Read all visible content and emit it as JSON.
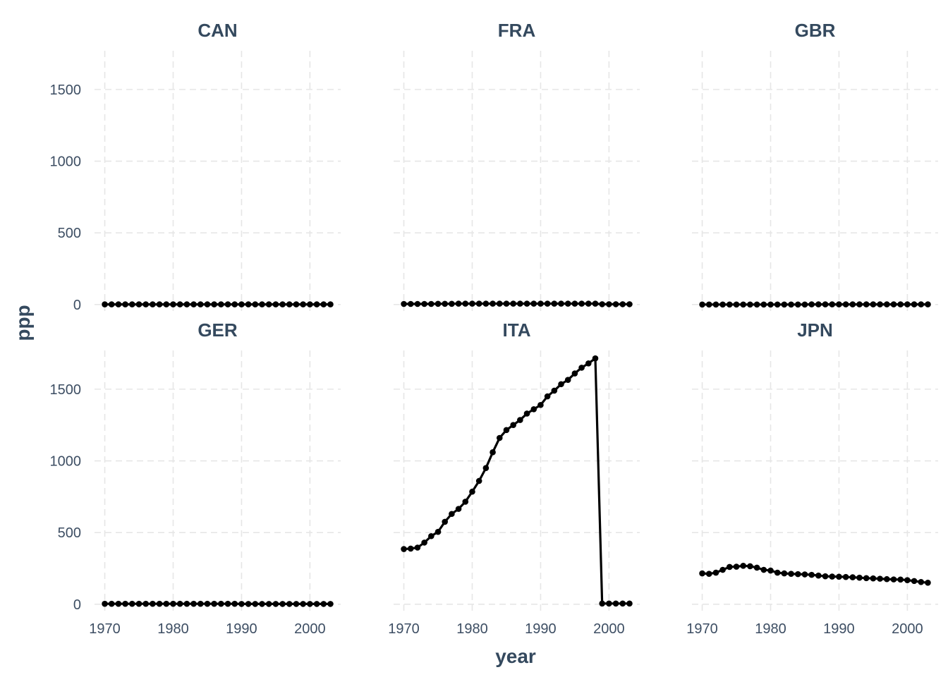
{
  "chart_data": {
    "type": "line",
    "facet_layout": "3 columns x 2 rows",
    "xlabel": "year",
    "ylabel": "ppp",
    "xlim": [
      1968.5,
      2004.5
    ],
    "ylim": [
      -60,
      1770
    ],
    "x_ticks": [
      1970,
      1980,
      1990,
      2000
    ],
    "y_ticks": [
      0,
      500,
      1000,
      1500
    ],
    "grid": true,
    "line_color": "#000000",
    "x": [
      1970,
      1971,
      1972,
      1973,
      1974,
      1975,
      1976,
      1977,
      1978,
      1979,
      1980,
      1981,
      1982,
      1983,
      1984,
      1985,
      1986,
      1987,
      1988,
      1989,
      1990,
      1991,
      1992,
      1993,
      1994,
      1995,
      1996,
      1997,
      1998,
      1999,
      2000,
      2001,
      2002,
      2003
    ],
    "panels": [
      {
        "title": "CAN",
        "values": [
          1,
          1,
          1,
          1,
          1,
          1,
          1,
          1,
          1,
          1,
          1,
          1,
          1,
          1,
          1,
          1,
          1,
          1,
          1,
          1,
          1,
          1,
          1,
          1,
          1,
          1,
          1,
          1,
          1,
          1,
          1,
          1,
          1,
          1
        ]
      },
      {
        "title": "FRA",
        "values": [
          4,
          4,
          4,
          4,
          4,
          5,
          5,
          5,
          6,
          6,
          6,
          6,
          6,
          6,
          6,
          6,
          6,
          6,
          6,
          6,
          6,
          6,
          6,
          6,
          6,
          6,
          6,
          6,
          6,
          2,
          2,
          2,
          2,
          2
        ]
      },
      {
        "title": "GBR",
        "values": [
          0,
          0,
          0,
          0,
          0,
          0,
          0,
          0,
          0,
          0,
          0,
          0,
          0,
          0,
          0,
          0,
          1,
          1,
          1,
          1,
          1,
          1,
          1,
          1,
          1,
          1,
          1,
          1,
          1,
          1,
          1,
          1,
          1,
          1
        ]
      },
      {
        "title": "GER",
        "values": [
          3,
          3,
          3,
          3,
          3,
          3,
          3,
          3,
          3,
          3,
          3,
          3,
          3,
          3,
          3,
          3,
          3,
          3,
          3,
          3,
          2,
          2,
          2,
          2,
          2,
          2,
          2,
          2,
          2,
          2,
          2,
          2,
          2,
          2
        ]
      },
      {
        "title": "ITA",
        "values": [
          385,
          388,
          395,
          430,
          475,
          505,
          575,
          630,
          665,
          715,
          785,
          860,
          950,
          1060,
          1160,
          1215,
          1250,
          1285,
          1330,
          1360,
          1390,
          1450,
          1490,
          1535,
          1565,
          1610,
          1650,
          1680,
          1715,
          5,
          5,
          5,
          5,
          5
        ]
      },
      {
        "title": "JPN",
        "values": [
          215,
          212,
          220,
          240,
          260,
          262,
          268,
          265,
          255,
          240,
          235,
          220,
          215,
          212,
          210,
          208,
          205,
          200,
          195,
          193,
          192,
          190,
          188,
          185,
          182,
          180,
          178,
          175,
          173,
          172,
          168,
          162,
          155,
          150
        ]
      }
    ]
  }
}
